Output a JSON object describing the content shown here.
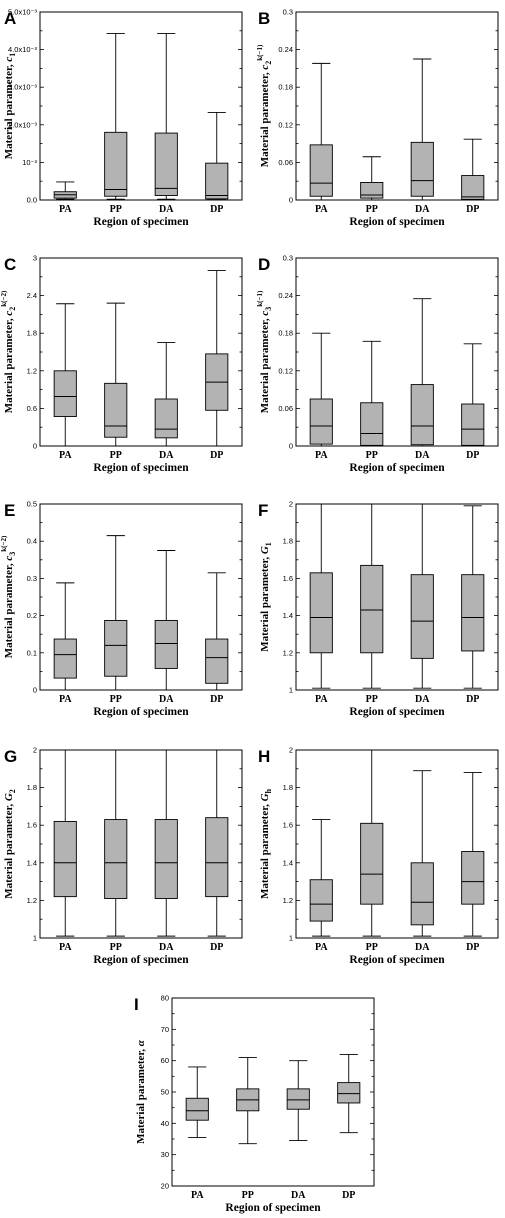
{
  "chart_data": [
    {
      "panel": "A",
      "type": "box",
      "categories": [
        "PA",
        "PP",
        "DA",
        "DP"
      ],
      "xlabel": "Region of specimen",
      "ylabel": {
        "prefix": "Material parameter, ",
        "var": "c",
        "sub": "1",
        "sup": ""
      },
      "ylim": [
        0,
        0.005
      ],
      "yticks": [
        0,
        0.001,
        0.002,
        0.003,
        0.004,
        0.005
      ],
      "yticklabels": [
        "0.0",
        "10⁻³",
        "2.0x10⁻³",
        "3.0x10⁻³",
        "4.0x10⁻³",
        "5.0x10⁻³"
      ],
      "boxes": [
        {
          "min": 2e-05,
          "q1": 5e-05,
          "median": 0.00014,
          "q3": 0.00022,
          "max": 0.00048
        },
        {
          "min": 2e-05,
          "q1": 0.0001,
          "median": 0.00028,
          "q3": 0.0018,
          "max": 0.00443
        },
        {
          "min": 2e-05,
          "q1": 0.00012,
          "median": 0.00031,
          "q3": 0.00178,
          "max": 0.00443
        },
        {
          "min": 1e-05,
          "q1": 3e-05,
          "median": 0.00012,
          "q3": 0.00098,
          "max": 0.00233
        }
      ]
    },
    {
      "panel": "B",
      "type": "box",
      "categories": [
        "PA",
        "PP",
        "DA",
        "DP"
      ],
      "xlabel": "Region of specimen",
      "ylabel": {
        "prefix": "Material parameter, ",
        "var": "c",
        "sub": "2",
        "sup": "k(−1)"
      },
      "ylim": [
        0,
        0.3
      ],
      "yticks": [
        0,
        0.06,
        0.12,
        0.18,
        0.24,
        0.3
      ],
      "yticklabels": [
        "0",
        "0.06",
        "0.12",
        "0.18",
        "0.24",
        "0.3"
      ],
      "boxes": [
        {
          "min": 0.0,
          "q1": 0.006,
          "median": 0.027,
          "q3": 0.088,
          "max": 0.218
        },
        {
          "min": 0.0,
          "q1": 0.003,
          "median": 0.008,
          "q3": 0.028,
          "max": 0.069
        },
        {
          "min": 0.0,
          "q1": 0.006,
          "median": 0.031,
          "q3": 0.092,
          "max": 0.225
        },
        {
          "min": 0.0,
          "q1": 0.001,
          "median": 0.005,
          "q3": 0.039,
          "max": 0.097
        }
      ]
    },
    {
      "panel": "C",
      "type": "box",
      "categories": [
        "PA",
        "PP",
        "DA",
        "DP"
      ],
      "xlabel": "Region of specimen",
      "ylabel": {
        "prefix": "Material parameter, ",
        "var": "c",
        "sub": "2",
        "sup": "k(−2)"
      },
      "ylim": [
        0,
        3
      ],
      "yticks": [
        0,
        0.6,
        1.2,
        1.8,
        2.4,
        3
      ],
      "yticklabels": [
        "0",
        "0.6",
        "1.2",
        "1.8",
        "2.4",
        "3"
      ],
      "boxes": [
        {
          "min": 0.0,
          "q1": 0.47,
          "median": 0.79,
          "q3": 1.2,
          "max": 2.27
        },
        {
          "min": 0.0,
          "q1": 0.14,
          "median": 0.32,
          "q3": 1.0,
          "max": 2.28
        },
        {
          "min": 0.0,
          "q1": 0.13,
          "median": 0.27,
          "q3": 0.75,
          "max": 1.65
        },
        {
          "min": 0.0,
          "q1": 0.57,
          "median": 1.02,
          "q3": 1.47,
          "max": 2.8
        }
      ]
    },
    {
      "panel": "D",
      "type": "box",
      "categories": [
        "PA",
        "PP",
        "DA",
        "DP"
      ],
      "xlabel": "Region of specimen",
      "ylabel": {
        "prefix": "Material parameter, ",
        "var": "c",
        "sub": "3",
        "sup": "k(−1)"
      },
      "ylim": [
        0,
        0.3
      ],
      "yticks": [
        0,
        0.06,
        0.12,
        0.18,
        0.24,
        0.3
      ],
      "yticklabels": [
        "0",
        "0.06",
        "0.12",
        "0.18",
        "0.24",
        "0.3"
      ],
      "boxes": [
        {
          "min": 0.0,
          "q1": 0.003,
          "median": 0.032,
          "q3": 0.075,
          "max": 0.18
        },
        {
          "min": 0.0,
          "q1": 0.001,
          "median": 0.02,
          "q3": 0.069,
          "max": 0.167
        },
        {
          "min": 0.0,
          "q1": 0.002,
          "median": 0.032,
          "q3": 0.098,
          "max": 0.235
        },
        {
          "min": 0.0,
          "q1": 0.001,
          "median": 0.027,
          "q3": 0.067,
          "max": 0.163
        }
      ]
    },
    {
      "panel": "E",
      "type": "box",
      "categories": [
        "PA",
        "PP",
        "DA",
        "DP"
      ],
      "xlabel": "Region of specimen",
      "ylabel": {
        "prefix": "Material parameter, ",
        "var": "c",
        "sub": "3",
        "sup": "k(−2)"
      },
      "ylim": [
        0,
        0.5
      ],
      "yticks": [
        0,
        0.1,
        0.2,
        0.3,
        0.4,
        0.5
      ],
      "yticklabels": [
        "0",
        "0.1",
        "0.2",
        "0.3",
        "0.4",
        "0.5"
      ],
      "boxes": [
        {
          "min": 0.0,
          "q1": 0.032,
          "median": 0.095,
          "q3": 0.137,
          "max": 0.288
        },
        {
          "min": 0.0,
          "q1": 0.037,
          "median": 0.12,
          "q3": 0.187,
          "max": 0.415
        },
        {
          "min": 0.0,
          "q1": 0.058,
          "median": 0.125,
          "q3": 0.187,
          "max": 0.375
        },
        {
          "min": 0.0,
          "q1": 0.018,
          "median": 0.087,
          "q3": 0.137,
          "max": 0.315
        }
      ]
    },
    {
      "panel": "F",
      "type": "box",
      "categories": [
        "PA",
        "PP",
        "DA",
        "DP"
      ],
      "xlabel": "Region of specimen",
      "ylabel": {
        "prefix": "Material parameter, ",
        "var": "G",
        "sub": "1",
        "sup": ""
      },
      "ylim": [
        1,
        2
      ],
      "yticks": [
        1,
        1.2,
        1.4,
        1.6,
        1.8,
        2
      ],
      "yticklabels": [
        "1",
        "1.2",
        "1.4",
        "1.6",
        "1.8",
        "2"
      ],
      "boxes": [
        {
          "min": 1.01,
          "q1": 1.2,
          "median": 1.39,
          "q3": 1.63,
          "max": 2.0
        },
        {
          "min": 1.01,
          "q1": 1.2,
          "median": 1.43,
          "q3": 1.67,
          "max": 2.0
        },
        {
          "min": 1.01,
          "q1": 1.17,
          "median": 1.37,
          "q3": 1.62,
          "max": 2.0
        },
        {
          "min": 1.01,
          "q1": 1.21,
          "median": 1.39,
          "q3": 1.62,
          "max": 1.99
        }
      ]
    },
    {
      "panel": "G",
      "type": "box",
      "categories": [
        "PA",
        "PP",
        "DA",
        "DP"
      ],
      "xlabel": "Region of specimen",
      "ylabel": {
        "prefix": "Material parameter, ",
        "var": "G",
        "sub": "2",
        "sup": ""
      },
      "ylim": [
        1,
        2
      ],
      "yticks": [
        1,
        1.2,
        1.4,
        1.6,
        1.8,
        2
      ],
      "yticklabels": [
        "1",
        "1.2",
        "1.4",
        "1.6",
        "1.8",
        "2"
      ],
      "boxes": [
        {
          "min": 1.01,
          "q1": 1.22,
          "median": 1.4,
          "q3": 1.62,
          "max": 2.0
        },
        {
          "min": 1.01,
          "q1": 1.21,
          "median": 1.4,
          "q3": 1.63,
          "max": 2.0
        },
        {
          "min": 1.01,
          "q1": 1.21,
          "median": 1.4,
          "q3": 1.63,
          "max": 2.0
        },
        {
          "min": 1.01,
          "q1": 1.22,
          "median": 1.4,
          "q3": 1.64,
          "max": 2.0
        }
      ]
    },
    {
      "panel": "H",
      "type": "box",
      "categories": [
        "PA",
        "PP",
        "DA",
        "DP"
      ],
      "xlabel": "Region of specimen",
      "ylabel": {
        "prefix": "Material parameter, ",
        "var": "G",
        "sub": "h",
        "sup": ""
      },
      "ylim": [
        1,
        2
      ],
      "yticks": [
        1,
        1.2,
        1.4,
        1.6,
        1.8,
        2
      ],
      "yticklabels": [
        "1",
        "1.2",
        "1.4",
        "1.6",
        "1.8",
        "2"
      ],
      "boxes": [
        {
          "min": 1.01,
          "q1": 1.09,
          "median": 1.18,
          "q3": 1.31,
          "max": 1.63
        },
        {
          "min": 1.01,
          "q1": 1.18,
          "median": 1.34,
          "q3": 1.61,
          "max": 2.0
        },
        {
          "min": 1.01,
          "q1": 1.07,
          "median": 1.19,
          "q3": 1.4,
          "max": 1.89
        },
        {
          "min": 1.01,
          "q1": 1.18,
          "median": 1.3,
          "q3": 1.46,
          "max": 1.88
        }
      ]
    },
    {
      "panel": "I",
      "type": "box",
      "categories": [
        "PA",
        "PP",
        "DA",
        "DP"
      ],
      "xlabel": "Region of specimen",
      "ylabel": {
        "prefix": "Material parameter, ",
        "var": "α",
        "sub": "",
        "sup": ""
      },
      "ylim": [
        20,
        80
      ],
      "yticks": [
        20,
        30,
        40,
        50,
        60,
        70,
        80
      ],
      "yticklabels": [
        "20",
        "30",
        "40",
        "50",
        "60",
        "70",
        "80"
      ],
      "boxes": [
        {
          "min": 35.5,
          "q1": 41.0,
          "median": 44.0,
          "q3": 48.0,
          "max": 58.0
        },
        {
          "min": 33.5,
          "q1": 44.0,
          "median": 47.5,
          "q3": 51.0,
          "max": 61.0
        },
        {
          "min": 34.5,
          "q1": 44.5,
          "median": 47.5,
          "q3": 51.0,
          "max": 60.0
        },
        {
          "min": 37.0,
          "q1": 46.5,
          "median": 49.5,
          "q3": 53.0,
          "max": 62.0
        }
      ]
    }
  ]
}
